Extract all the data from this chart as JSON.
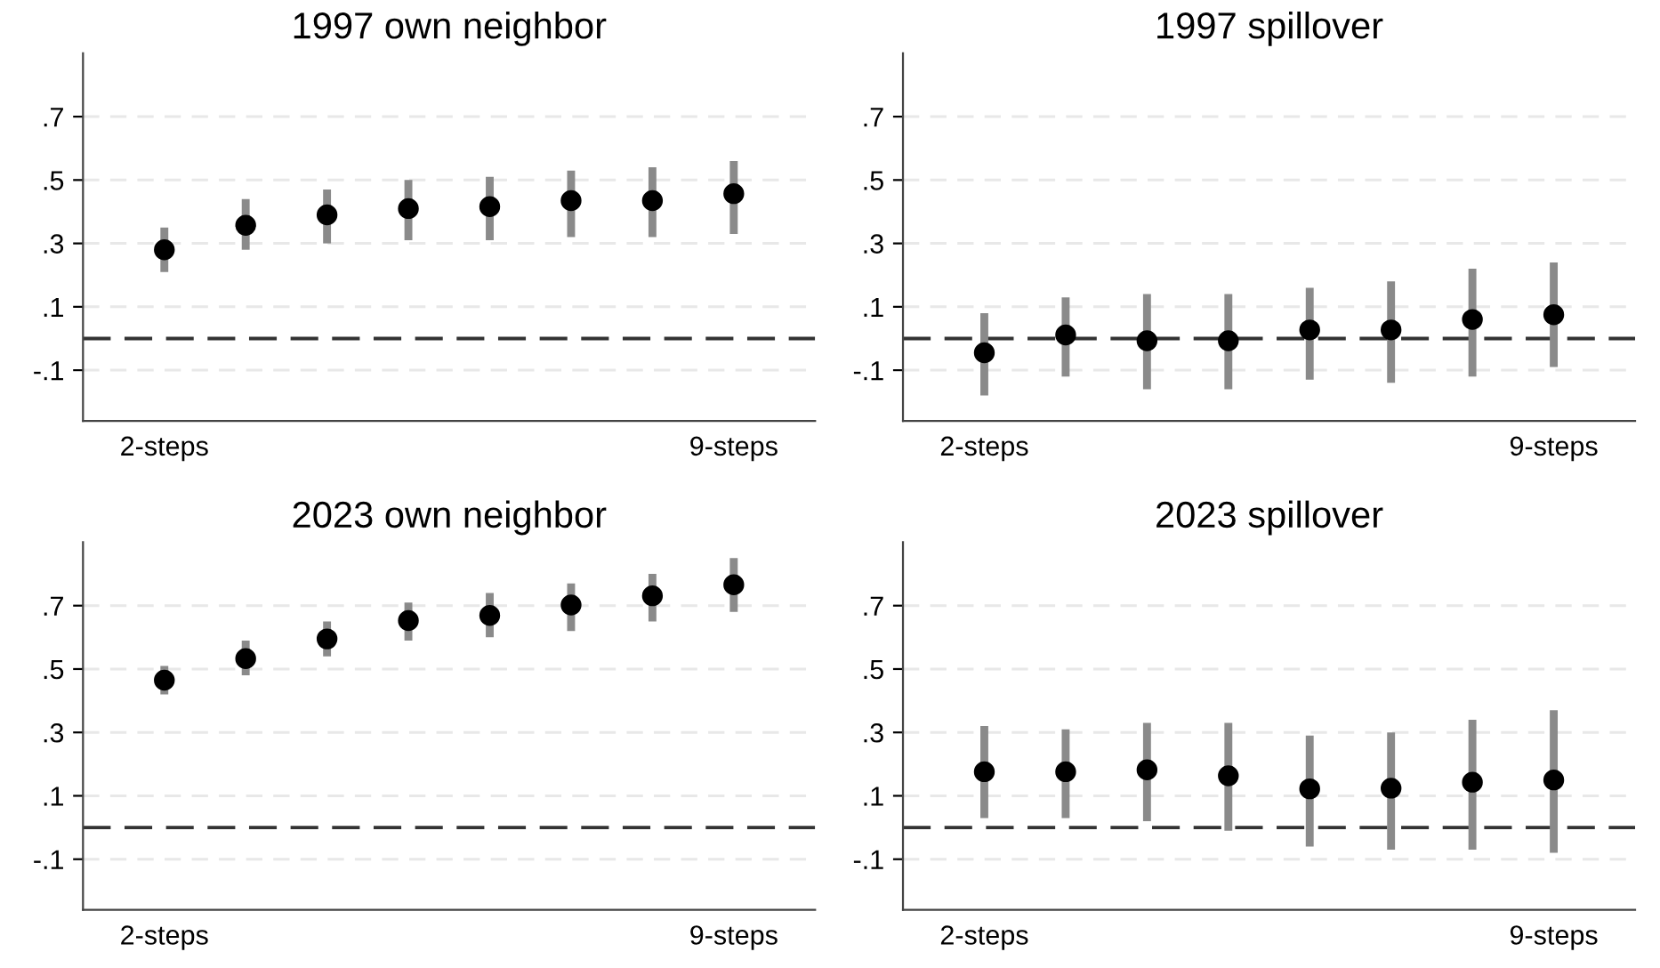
{
  "chart_data": [
    {
      "type": "scatter",
      "title": "1997 own neighbor",
      "categories": [
        "2-steps",
        null,
        null,
        null,
        null,
        null,
        null,
        "9-steps"
      ],
      "series": [
        {
          "color": "#000000",
          "values": [
            0.28,
            0.357,
            0.39,
            0.41,
            0.416,
            0.435,
            0.435,
            0.457
          ],
          "errors": [
            [
              0.21,
              0.35
            ],
            [
              0.28,
              0.44
            ],
            [
              0.3,
              0.47
            ],
            [
              0.31,
              0.5
            ],
            [
              0.31,
              0.51
            ],
            [
              0.32,
              0.53
            ],
            [
              0.32,
              0.54
            ],
            [
              0.33,
              0.56
            ]
          ]
        }
      ],
      "ylim": [
        -0.26,
        0.9
      ],
      "yticks": [
        {
          "value": -0.1,
          "label": "-.1"
        },
        {
          "value": 0.1,
          "label": ".1"
        },
        {
          "value": 0.3,
          "label": ".3"
        },
        {
          "value": 0.5,
          "label": ".5"
        },
        {
          "value": 0.7,
          "label": ".7"
        }
      ],
      "grid": "y",
      "marker": "circle",
      "legend": false,
      "ref_lines": [
        {
          "axis": "y",
          "value": 0,
          "color": "#333333",
          "line_style": "dashed"
        }
      ]
    },
    {
      "type": "scatter",
      "title": "1997 spillover",
      "categories": [
        "2-steps",
        null,
        null,
        null,
        null,
        null,
        null,
        "9-steps"
      ],
      "series": [
        {
          "color": "#000000",
          "values": [
            -0.045,
            0.011,
            -0.007,
            -0.007,
            0.027,
            0.027,
            0.06,
            0.075
          ],
          "errors": [
            [
              -0.18,
              0.08
            ],
            [
              -0.12,
              0.13
            ],
            [
              -0.16,
              0.14
            ],
            [
              -0.16,
              0.14
            ],
            [
              -0.13,
              0.16
            ],
            [
              -0.14,
              0.18
            ],
            [
              -0.12,
              0.22
            ],
            [
              -0.09,
              0.24
            ]
          ]
        }
      ],
      "ylim": [
        -0.26,
        0.9
      ],
      "yticks": [
        {
          "value": -0.1,
          "label": "-.1"
        },
        {
          "value": 0.1,
          "label": ".1"
        },
        {
          "value": 0.3,
          "label": ".3"
        },
        {
          "value": 0.5,
          "label": ".5"
        },
        {
          "value": 0.7,
          "label": ".7"
        }
      ],
      "grid": "y",
      "marker": "circle",
      "legend": false,
      "ref_lines": [
        {
          "axis": "y",
          "value": 0,
          "color": "#333333",
          "line_style": "dashed"
        }
      ]
    },
    {
      "type": "scatter",
      "title": "2023 own neighbor",
      "categories": [
        "2-steps",
        null,
        null,
        null,
        null,
        null,
        null,
        "9-steps"
      ],
      "series": [
        {
          "color": "#000000",
          "values": [
            0.465,
            0.533,
            0.595,
            0.653,
            0.669,
            0.702,
            0.731,
            0.766
          ],
          "errors": [
            [
              0.42,
              0.51
            ],
            [
              0.48,
              0.59
            ],
            [
              0.54,
              0.65
            ],
            [
              0.59,
              0.71
            ],
            [
              0.6,
              0.74
            ],
            [
              0.62,
              0.77
            ],
            [
              0.65,
              0.8
            ],
            [
              0.68,
              0.85
            ]
          ]
        }
      ],
      "ylim": [
        -0.26,
        0.9
      ],
      "yticks": [
        {
          "value": -0.1,
          "label": "-.1"
        },
        {
          "value": 0.1,
          "label": ".1"
        },
        {
          "value": 0.3,
          "label": ".3"
        },
        {
          "value": 0.5,
          "label": ".5"
        },
        {
          "value": 0.7,
          "label": ".7"
        }
      ],
      "grid": "y",
      "marker": "circle",
      "legend": false,
      "ref_lines": [
        {
          "axis": "y",
          "value": 0,
          "color": "#333333",
          "line_style": "dashed"
        }
      ]
    },
    {
      "type": "scatter",
      "title": "2023 spillover",
      "categories": [
        "2-steps",
        null,
        null,
        null,
        null,
        null,
        null,
        "9-steps"
      ],
      "series": [
        {
          "color": "#000000",
          "values": [
            0.176,
            0.176,
            0.182,
            0.163,
            0.122,
            0.124,
            0.143,
            0.15
          ],
          "errors": [
            [
              0.03,
              0.32
            ],
            [
              0.03,
              0.31
            ],
            [
              0.02,
              0.33
            ],
            [
              -0.01,
              0.33
            ],
            [
              -0.06,
              0.29
            ],
            [
              -0.07,
              0.3
            ],
            [
              -0.07,
              0.34
            ],
            [
              -0.08,
              0.37
            ]
          ]
        }
      ],
      "ylim": [
        -0.26,
        0.9
      ],
      "yticks": [
        {
          "value": -0.1,
          "label": "-.1"
        },
        {
          "value": 0.1,
          "label": ".1"
        },
        {
          "value": 0.3,
          "label": ".3"
        },
        {
          "value": 0.5,
          "label": ".5"
        },
        {
          "value": 0.7,
          "label": ".7"
        }
      ],
      "grid": "y",
      "marker": "circle",
      "legend": false,
      "ref_lines": [
        {
          "axis": "y",
          "value": 0,
          "color": "#333333",
          "line_style": "dashed"
        }
      ]
    }
  ]
}
